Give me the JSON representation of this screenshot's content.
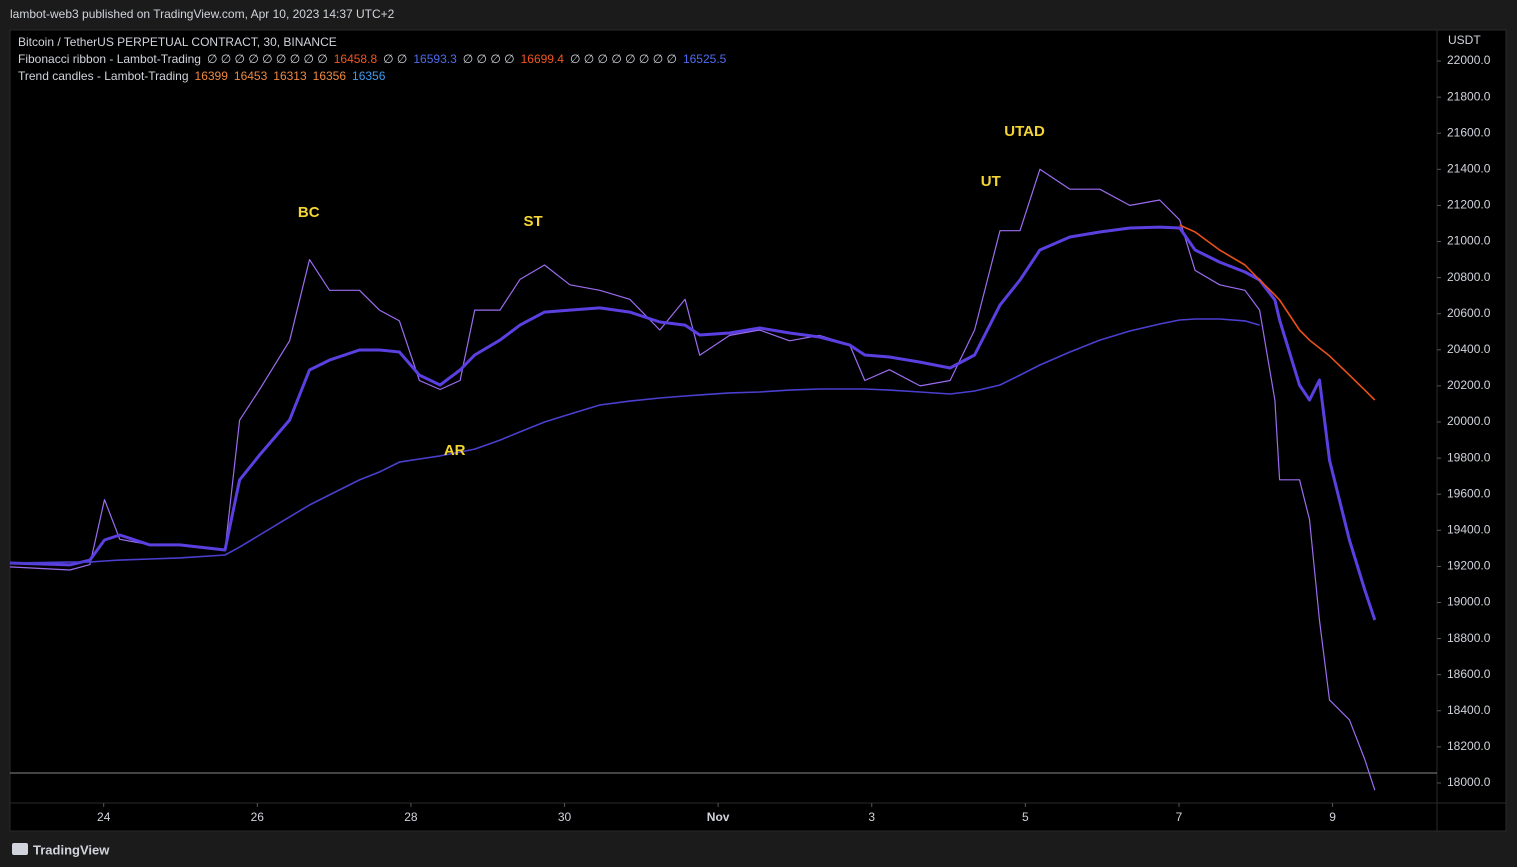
{
  "header": {
    "published": "lambot-web3 published on TradingView.com, Apr 10, 2023 14:37 UTC+2",
    "brand": "TradingView"
  },
  "legend": {
    "symbol": "Bitcoin / TetherUS PERPETUAL CONTRACT, 30, BINANCE",
    "fib_ribbon": {
      "name": "Fibonacci ribbon - Lambot-Trading",
      "items": [
        "∅ ∅ ∅ ∅ ∅ ∅ ∅ ∅ ∅",
        16458.8,
        "∅ ∅",
        16593.3,
        "∅ ∅ ∅ ∅",
        16699.4,
        "∅ ∅ ∅ ∅ ∅ ∅ ∅ ∅",
        16525.5
      ],
      "colors": [
        "#d1d4dc",
        "#f0561f",
        "#d1d4dc",
        "#4f6cf0",
        "#d1d4dc",
        "#f0561f",
        "#d1d4dc",
        "#4f6cf0"
      ]
    },
    "trend_candles": {
      "name": "Trend candles - Lambot-Trading",
      "items": [
        16399,
        16453,
        16313,
        16356,
        16356
      ],
      "colors": [
        "#f0883e",
        "#f0883e",
        "#f0883e",
        "#f0883e",
        "#3d9bf0"
      ]
    }
  },
  "chart_data": {
    "type": "line",
    "y_axis_label": "USDT",
    "x": [
      -1.22,
      -0.44,
      -0.18,
      0.01,
      0.21,
      0.6,
      0.99,
      1.58,
      1.77,
      2.03,
      2.42,
      2.68,
      2.94,
      3.33,
      3.59,
      3.85,
      4.11,
      4.38,
      4.64,
      4.83,
      5.16,
      5.42,
      5.74,
      6.07,
      6.46,
      6.85,
      7.24,
      7.57,
      7.76,
      8.15,
      8.54,
      8.93,
      9.32,
      9.71,
      9.91,
      10.23,
      10.63,
      11.02,
      11.34,
      11.67,
      11.93,
      12.19,
      12.58,
      12.97,
      13.36,
      13.75,
      14.01,
      14.21,
      14.53,
      14.86,
      15.05,
      15.25,
      15.31,
      15.57,
      15.7,
      15.83,
      15.96,
      16.22,
      16.42,
      16.55
    ],
    "series": [
      {
        "name": "Price",
        "color": "#9b6cf0",
        "width": 1.2,
        "values": [
          19197,
          19180,
          19210,
          19570,
          19350,
          19320,
          19320,
          19290,
          20010,
          20180,
          20450,
          20900,
          20730,
          20730,
          20620,
          20560,
          20230,
          20180,
          20230,
          20620,
          20620,
          20790,
          20870,
          20760,
          20730,
          20680,
          20510,
          20680,
          20370,
          20480,
          20510,
          20450,
          20480,
          20430,
          20230,
          20290,
          20200,
          20230,
          20510,
          21060,
          21060,
          21400,
          21290,
          21290,
          21200,
          21230,
          21120,
          20840,
          20760,
          20730,
          20620,
          20120,
          19680,
          19680,
          19460,
          18900,
          18460,
          18350,
          18130,
          17960
        ]
      },
      {
        "name": "Fast ribbon",
        "color": "#5b3fe0",
        "width": 3,
        "values": [
          19219,
          19208,
          19235,
          19346,
          19374,
          19319,
          19319,
          19291,
          19679,
          19817,
          20011,
          20288,
          20343,
          20399,
          20399,
          20388,
          20260,
          20205,
          20288,
          20371,
          20454,
          20537,
          20609,
          20620,
          20632,
          20609,
          20554,
          20537,
          20482,
          20493,
          20521,
          20493,
          20471,
          20427,
          20371,
          20360,
          20332,
          20299,
          20371,
          20648,
          20787,
          20953,
          21025,
          21053,
          21075,
          21080,
          21075,
          20953,
          20886,
          20831,
          20787,
          20676,
          20565,
          20205,
          20122,
          20233,
          19789,
          19346,
          19069,
          18903
        ]
      },
      {
        "name": "Slow line",
        "color": "#4b3fd0",
        "width": 1.6,
        "values": [
          19219,
          19224,
          19224,
          19230,
          19235,
          19241,
          19247,
          19263,
          19307,
          19374,
          19474,
          19540,
          19596,
          19679,
          19723,
          19778,
          19795,
          19812,
          19834,
          19850,
          19900,
          19945,
          20000,
          20044,
          20094,
          20116,
          20133,
          20144,
          20150,
          20161,
          20166,
          20177,
          20183,
          20183,
          20183,
          20177,
          20166,
          20155,
          20172,
          20205,
          20260,
          20316,
          20388,
          20454,
          20504,
          20543,
          20565,
          20571,
          20571,
          20560,
          20537,
          null,
          null,
          null,
          null,
          null,
          null,
          null,
          null,
          null
        ]
      },
      {
        "name": "Trend line",
        "color": "#e8501a",
        "width": 1.6,
        "values": [
          null,
          null,
          null,
          null,
          null,
          null,
          null,
          null,
          null,
          null,
          null,
          null,
          null,
          null,
          null,
          null,
          null,
          null,
          null,
          null,
          null,
          null,
          null,
          null,
          null,
          null,
          null,
          null,
          null,
          null,
          null,
          null,
          null,
          null,
          null,
          null,
          null,
          null,
          null,
          null,
          null,
          null,
          null,
          null,
          null,
          null,
          21091,
          21053,
          20953,
          20870,
          20787,
          20704,
          20676,
          20510,
          20454,
          20410,
          20366,
          20260,
          20177,
          20122
        ]
      }
    ],
    "hline": 18055,
    "annotations": [
      {
        "text": "BC",
        "x": 2.67,
        "y": 21158
      },
      {
        "text": "ST",
        "x": 5.59,
        "y": 21108
      },
      {
        "text": "AR",
        "x": 4.57,
        "y": 19839
      },
      {
        "text": "UT",
        "x": 11.55,
        "y": 21330
      },
      {
        "text": "UTAD",
        "x": 11.99,
        "y": 21607
      }
    ],
    "xlim": [
      -1.22,
      17.36
    ],
    "xticks": [
      {
        "value": 0,
        "label": "24"
      },
      {
        "value": 2,
        "label": "26"
      },
      {
        "value": 4,
        "label": "28"
      },
      {
        "value": 6,
        "label": "30"
      },
      {
        "value": 8,
        "label": "Nov"
      },
      {
        "value": 10,
        "label": "3"
      },
      {
        "value": 12,
        "label": "5"
      },
      {
        "value": 14,
        "label": "7"
      },
      {
        "value": 16,
        "label": "9"
      }
    ],
    "ylim": [
      17889,
      22172
    ],
    "yticks": [
      {
        "value": 18000,
        "label": "18000.0"
      },
      {
        "value": 18200,
        "label": "18200.0"
      },
      {
        "value": 18400,
        "label": "18400.0"
      },
      {
        "value": 18600,
        "label": "18600.0"
      },
      {
        "value": 18800,
        "label": "18800.0"
      },
      {
        "value": 19000,
        "label": "19000.0"
      },
      {
        "value": 19200,
        "label": "19200.0"
      },
      {
        "value": 19400,
        "label": "19400.0"
      },
      {
        "value": 19600,
        "label": "19600.0"
      },
      {
        "value": 19800,
        "label": "19800.0"
      },
      {
        "value": 20000,
        "label": "20000.0"
      },
      {
        "value": 20200,
        "label": "20200.0"
      },
      {
        "value": 20400,
        "label": "20400.0"
      },
      {
        "value": 20600,
        "label": "20600.0"
      },
      {
        "value": 20800,
        "label": "20800.0"
      },
      {
        "value": 21000,
        "label": "21000.0"
      },
      {
        "value": 21200,
        "label": "21200.0"
      },
      {
        "value": 21400,
        "label": "21400.0"
      },
      {
        "value": 21600,
        "label": "21600.0"
      },
      {
        "value": 21800,
        "label": "21800.0"
      },
      {
        "value": 22000,
        "label": "22000.0"
      }
    ]
  }
}
